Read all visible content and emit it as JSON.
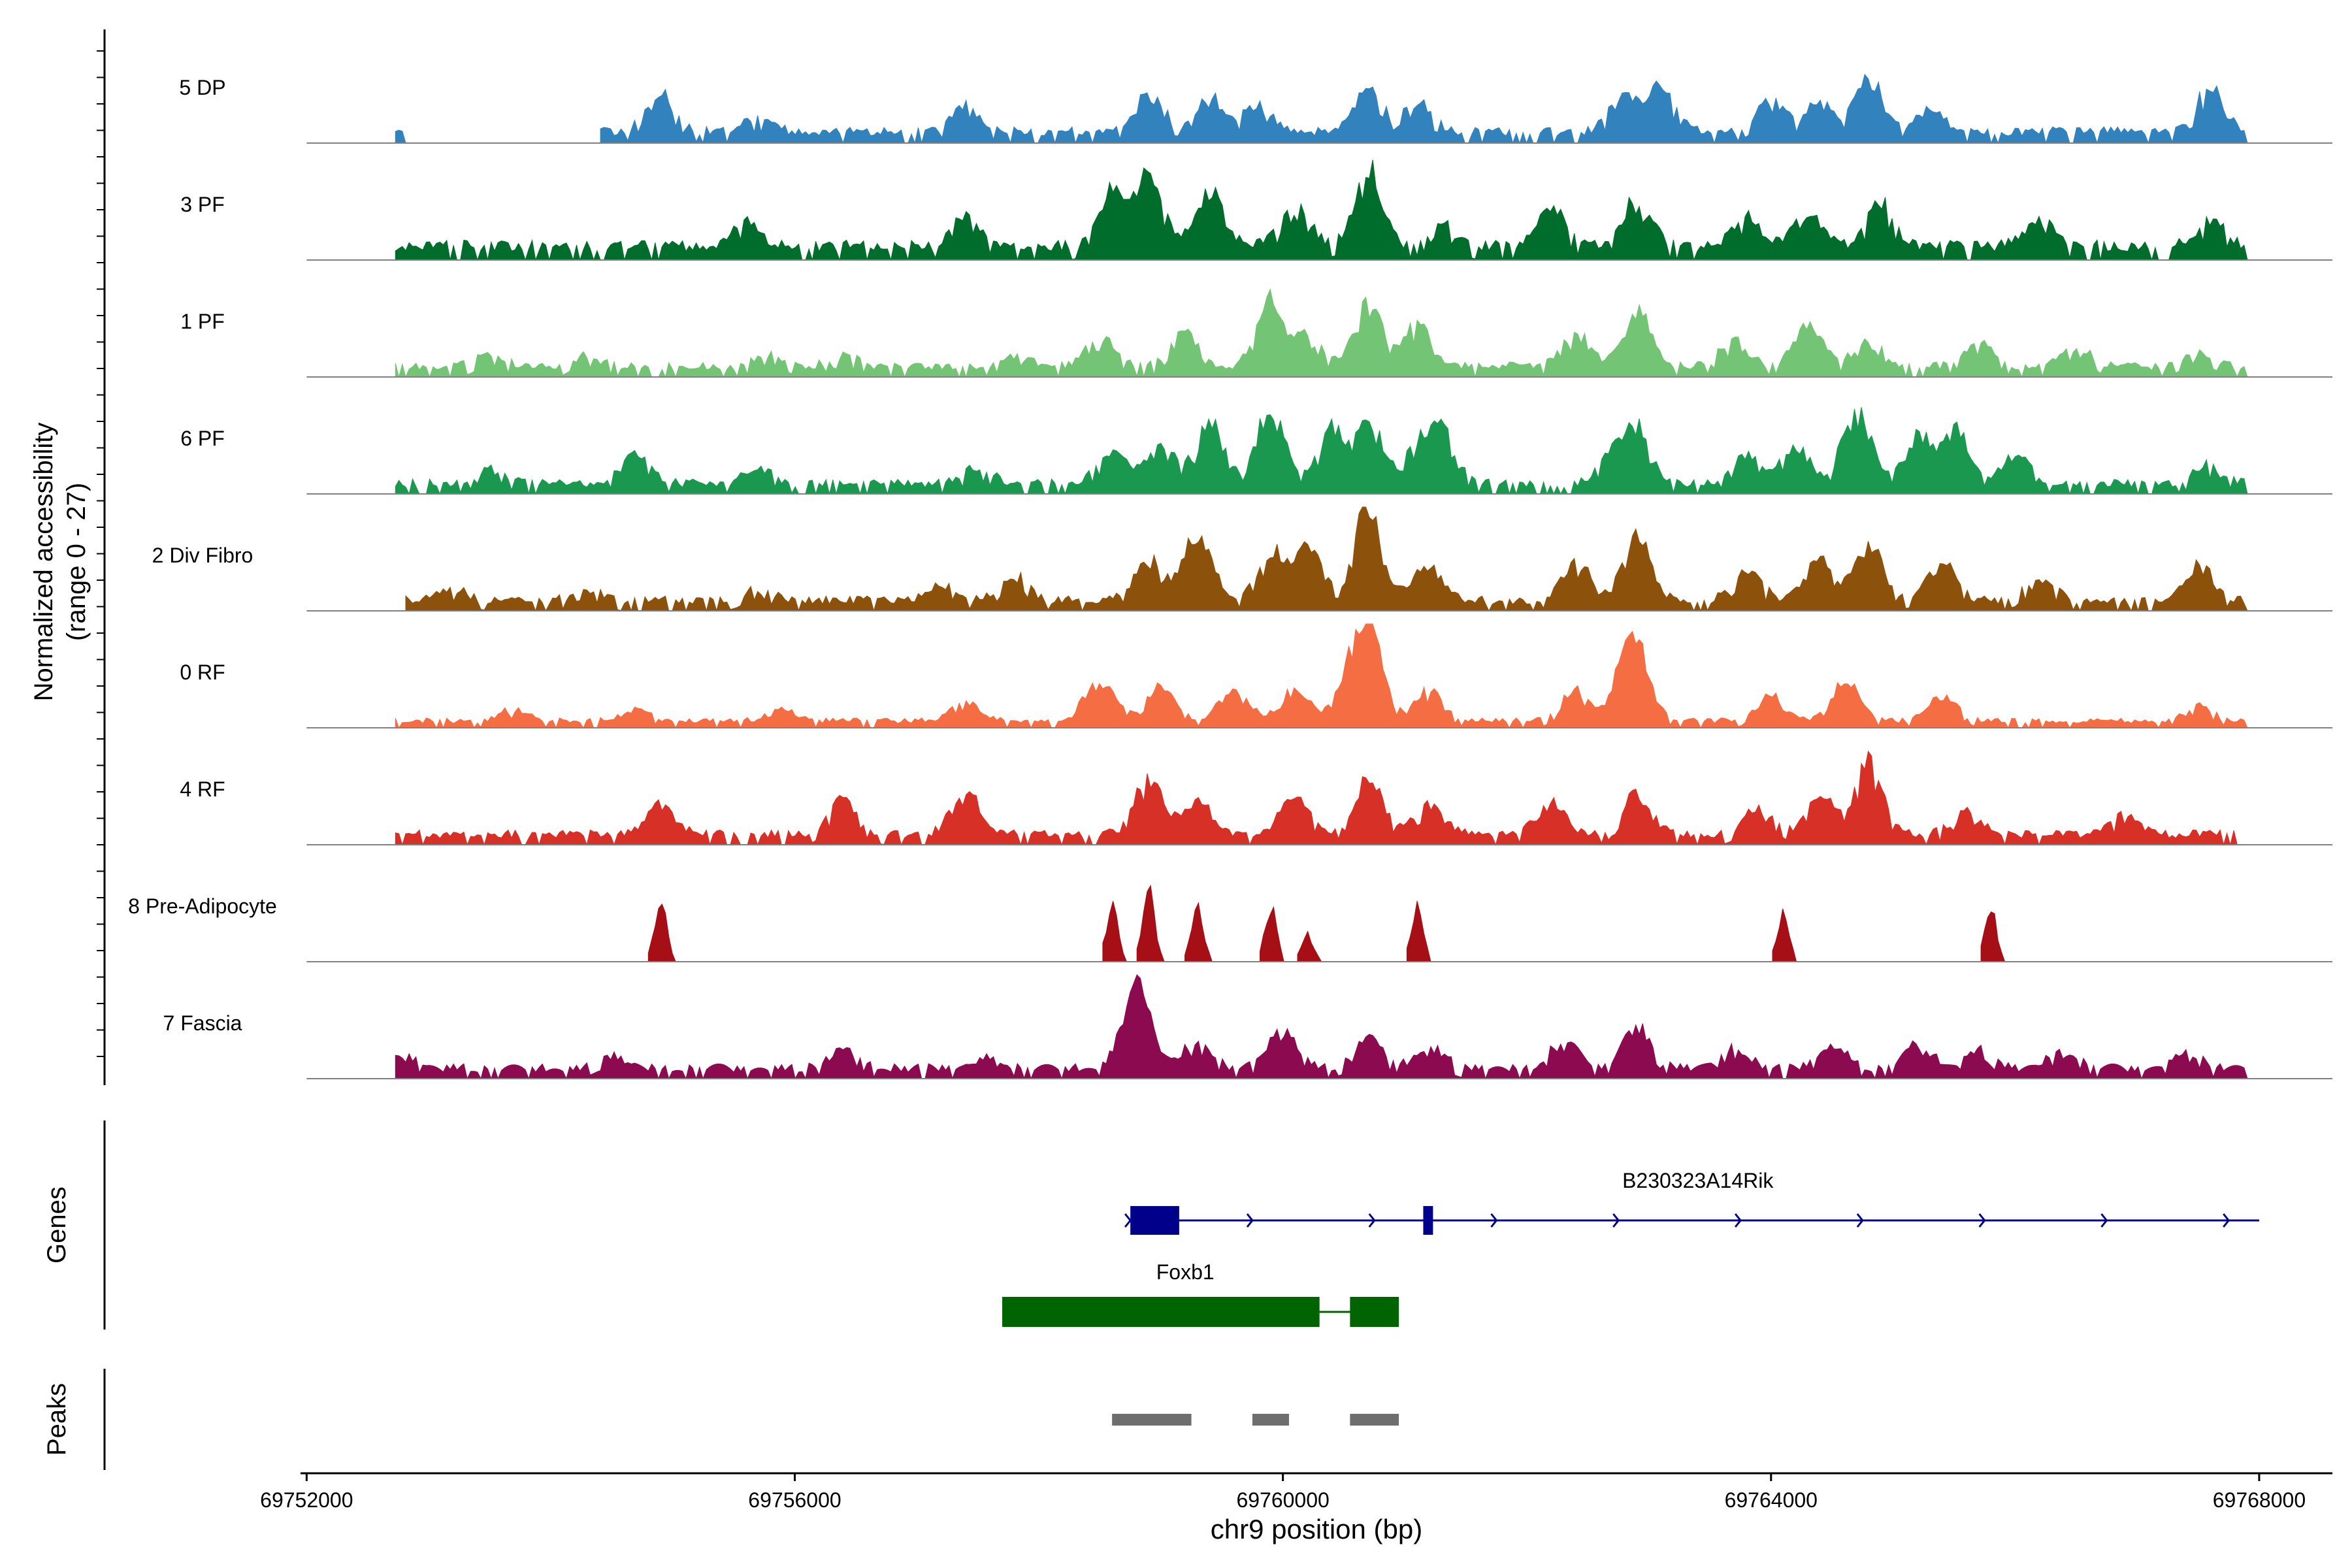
{
  "chart_data": {
    "type": "area",
    "ylabel_line1": "Normalized accessibility",
    "ylabel_line2": "(range 0 - 27)",
    "xlabel": "chr9 position (bp)",
    "xlim": [
      69751950,
      69768600
    ],
    "track_xlim": [
      69752000,
      69768000
    ],
    "ylim": [
      0,
      27
    ],
    "x_ticks": [
      69752000,
      69756000,
      69760000,
      69764000,
      69768000
    ],
    "x_tick_labels": [
      "69752000",
      "69756000",
      "69760000",
      "69764000",
      "69768000"
    ],
    "tracks": [
      {
        "name": "5 DP",
        "color": "#3182bd",
        "seed": 11,
        "baseline": 3,
        "scale": 1.1,
        "gaps": [
          [
            69752000,
            69752700
          ],
          [
            69752800,
            69754400
          ],
          [
            69767900,
            69768000
          ]
        ],
        "peaks": [
          [
            69754900,
            9
          ],
          [
            69755700,
            3
          ],
          [
            69757400,
            6
          ],
          [
            69758900,
            9
          ],
          [
            69759400,
            8
          ],
          [
            69759800,
            6
          ],
          [
            69760700,
            10
          ],
          [
            69761100,
            7
          ],
          [
            69762800,
            9
          ],
          [
            69763100,
            10
          ],
          [
            69764000,
            8
          ],
          [
            69764400,
            7
          ],
          [
            69764800,
            13
          ],
          [
            69765300,
            5
          ],
          [
            69767600,
            10
          ]
        ]
      },
      {
        "name": "3 PF",
        "color": "#006d2c",
        "seed": 23,
        "baseline": 4,
        "scale": 1.0,
        "gaps": [
          [
            69752000,
            69752700
          ],
          [
            69767900,
            69768000
          ]
        ],
        "peaks": [
          [
            69755600,
            6
          ],
          [
            69757400,
            8
          ],
          [
            69758600,
            14
          ],
          [
            69758900,
            19
          ],
          [
            69759400,
            14
          ],
          [
            69760100,
            12
          ],
          [
            69760700,
            20
          ],
          [
            69761300,
            6
          ],
          [
            69762200,
            10
          ],
          [
            69762900,
            12
          ],
          [
            69763800,
            8
          ],
          [
            69764300,
            9
          ],
          [
            69764900,
            11
          ],
          [
            69766200,
            7
          ],
          [
            69767600,
            7
          ]
        ]
      },
      {
        "name": "1 PF",
        "color": "#74c476",
        "seed": 37,
        "baseline": 3,
        "scale": 1.0,
        "gaps": [
          [
            69752000,
            69752700
          ],
          [
            69767900,
            69768000
          ]
        ],
        "peaks": [
          [
            69753500,
            3
          ],
          [
            69754300,
            3
          ],
          [
            69755800,
            3
          ],
          [
            69756400,
            3
          ],
          [
            69757800,
            3
          ],
          [
            69758500,
            8
          ],
          [
            69759200,
            9
          ],
          [
            69759900,
            17
          ],
          [
            69760200,
            8
          ],
          [
            69760700,
            16
          ],
          [
            69761100,
            11
          ],
          [
            69762400,
            9
          ],
          [
            69762900,
            15
          ],
          [
            69763700,
            7
          ],
          [
            69764300,
            11
          ],
          [
            69764800,
            7
          ],
          [
            69765700,
            7
          ],
          [
            69766500,
            5
          ],
          [
            69767500,
            4
          ]
        ]
      },
      {
        "name": "6 PF",
        "color": "#1a9850",
        "seed": 41,
        "baseline": 3,
        "scale": 1.0,
        "gaps": [
          [
            69752000,
            69752700
          ],
          [
            69767900,
            69768000
          ]
        ],
        "peaks": [
          [
            69753500,
            4
          ],
          [
            69754700,
            8
          ],
          [
            69755700,
            4
          ],
          [
            69757500,
            4
          ],
          [
            69758600,
            9
          ],
          [
            69759000,
            10
          ],
          [
            69759400,
            16
          ],
          [
            69759900,
            19
          ],
          [
            69760400,
            14
          ],
          [
            69760700,
            17
          ],
          [
            69761100,
            9
          ],
          [
            69761300,
            13
          ],
          [
            69762700,
            8
          ],
          [
            69762900,
            13
          ],
          [
            69763800,
            8
          ],
          [
            69764200,
            10
          ],
          [
            69764700,
            19
          ],
          [
            69765200,
            12
          ],
          [
            69765500,
            15
          ],
          [
            69766000,
            8
          ],
          [
            69767600,
            5
          ]
        ]
      },
      {
        "name": "2 Div Fibro",
        "color": "#8c510a",
        "seed": 53,
        "baseline": 3,
        "scale": 1.0,
        "gaps": [
          [
            69752000,
            69752800
          ],
          [
            69767900,
            69768000
          ]
        ],
        "peaks": [
          [
            69753200,
            3
          ],
          [
            69754300,
            3
          ],
          [
            69755700,
            3
          ],
          [
            69757200,
            4
          ],
          [
            69757800,
            6
          ],
          [
            69758900,
            11
          ],
          [
            69759300,
            17
          ],
          [
            69759900,
            12
          ],
          [
            69760200,
            15
          ],
          [
            69760700,
            25
          ],
          [
            69761200,
            10
          ],
          [
            69762400,
            10
          ],
          [
            69762900,
            17
          ],
          [
            69763800,
            8
          ],
          [
            69764400,
            10
          ],
          [
            69764800,
            15
          ],
          [
            69765400,
            10
          ],
          [
            69766200,
            6
          ],
          [
            69767500,
            9
          ]
        ]
      },
      {
        "name": "0 RF",
        "color": "#f46d43",
        "seed": 61,
        "baseline": 2,
        "scale": 1.0,
        "gaps": [
          [
            69752000,
            69752700
          ],
          [
            69767900,
            69768000
          ]
        ],
        "peaks": [
          [
            69753700,
            3
          ],
          [
            69754700,
            3
          ],
          [
            69755900,
            3
          ],
          [
            69757400,
            5
          ],
          [
            69758500,
            12
          ],
          [
            69759000,
            10
          ],
          [
            69759600,
            9
          ],
          [
            69760100,
            8
          ],
          [
            69760500,
            7
          ],
          [
            69760700,
            28
          ],
          [
            69761200,
            8
          ],
          [
            69762400,
            8
          ],
          [
            69762800,
            10
          ],
          [
            69762900,
            16
          ],
          [
            69764000,
            7
          ],
          [
            69764600,
            11
          ],
          [
            69765400,
            7
          ],
          [
            69767500,
            4
          ]
        ]
      },
      {
        "name": "4 RF",
        "color": "#d73027",
        "seed": 73,
        "baseline": 3,
        "scale": 1.0,
        "gaps": [
          [
            69752000,
            69752700
          ],
          [
            69767800,
            69768000
          ]
        ],
        "peaks": [
          [
            69754900,
            8
          ],
          [
            69756400,
            9
          ],
          [
            69757400,
            11
          ],
          [
            69758900,
            15
          ],
          [
            69759300,
            9
          ],
          [
            69760100,
            10
          ],
          [
            69760700,
            14
          ],
          [
            69761200,
            8
          ],
          [
            69762200,
            10
          ],
          [
            69762900,
            11
          ],
          [
            69763900,
            7
          ],
          [
            69764400,
            10
          ],
          [
            69764800,
            18
          ],
          [
            69765600,
            6
          ],
          [
            69766900,
            5
          ]
        ]
      },
      {
        "name": "8 Pre-Adipocyte",
        "color": "#a50f15",
        "seed": 83,
        "baseline": 0,
        "scale": 1.0,
        "gaps": [],
        "peaks": [
          [
            69754900,
            16
          ],
          [
            69758600,
            15
          ],
          [
            69758900,
            19
          ],
          [
            69759300,
            14
          ],
          [
            69759900,
            14
          ],
          [
            69760200,
            7
          ],
          [
            69761100,
            14
          ],
          [
            69764100,
            13
          ],
          [
            69765800,
            14
          ]
        ]
      },
      {
        "name": "7 Fascia",
        "color": "#8b0a50",
        "seed": 97,
        "baseline": 3,
        "scale": 1.0,
        "gaps": [
          [
            69752000,
            69752700
          ],
          [
            69767900,
            69768000
          ]
        ],
        "peaks": [
          [
            69752800,
            3
          ],
          [
            69754500,
            3
          ],
          [
            69756400,
            5
          ],
          [
            69757600,
            3
          ],
          [
            69758800,
            22
          ],
          [
            69759300,
            7
          ],
          [
            69760000,
            10
          ],
          [
            69760700,
            8
          ],
          [
            69761200,
            6
          ],
          [
            69762300,
            7
          ],
          [
            69762900,
            11
          ],
          [
            69763700,
            5
          ],
          [
            69764500,
            6
          ],
          [
            69765200,
            6
          ],
          [
            69765700,
            5
          ],
          [
            69766400,
            5
          ],
          [
            69767400,
            4
          ]
        ]
      }
    ],
    "genes_label": "Genes",
    "genes": [
      {
        "name": "B230323A14Rik",
        "color": "#00008b",
        "start": 69758750,
        "end": 69768000,
        "strand": "+",
        "label_pos": 69763400,
        "exons": [
          [
            69758750,
            69759150
          ],
          [
            69761150,
            69761230
          ]
        ]
      },
      {
        "name": "Foxb1",
        "color": "#006400",
        "start": 69757700,
        "end": 69760950,
        "strand": "+",
        "label_pos": 69759200,
        "exons": [
          [
            69757700,
            69760300
          ],
          [
            69760550,
            69760950
          ]
        ]
      }
    ],
    "peaks_label": "Peaks",
    "peaks_color": "#6e6e6e",
    "peak_regions": [
      [
        69758600,
        69759250
      ],
      [
        69759750,
        69760050
      ],
      [
        69760550,
        69760950
      ]
    ]
  }
}
